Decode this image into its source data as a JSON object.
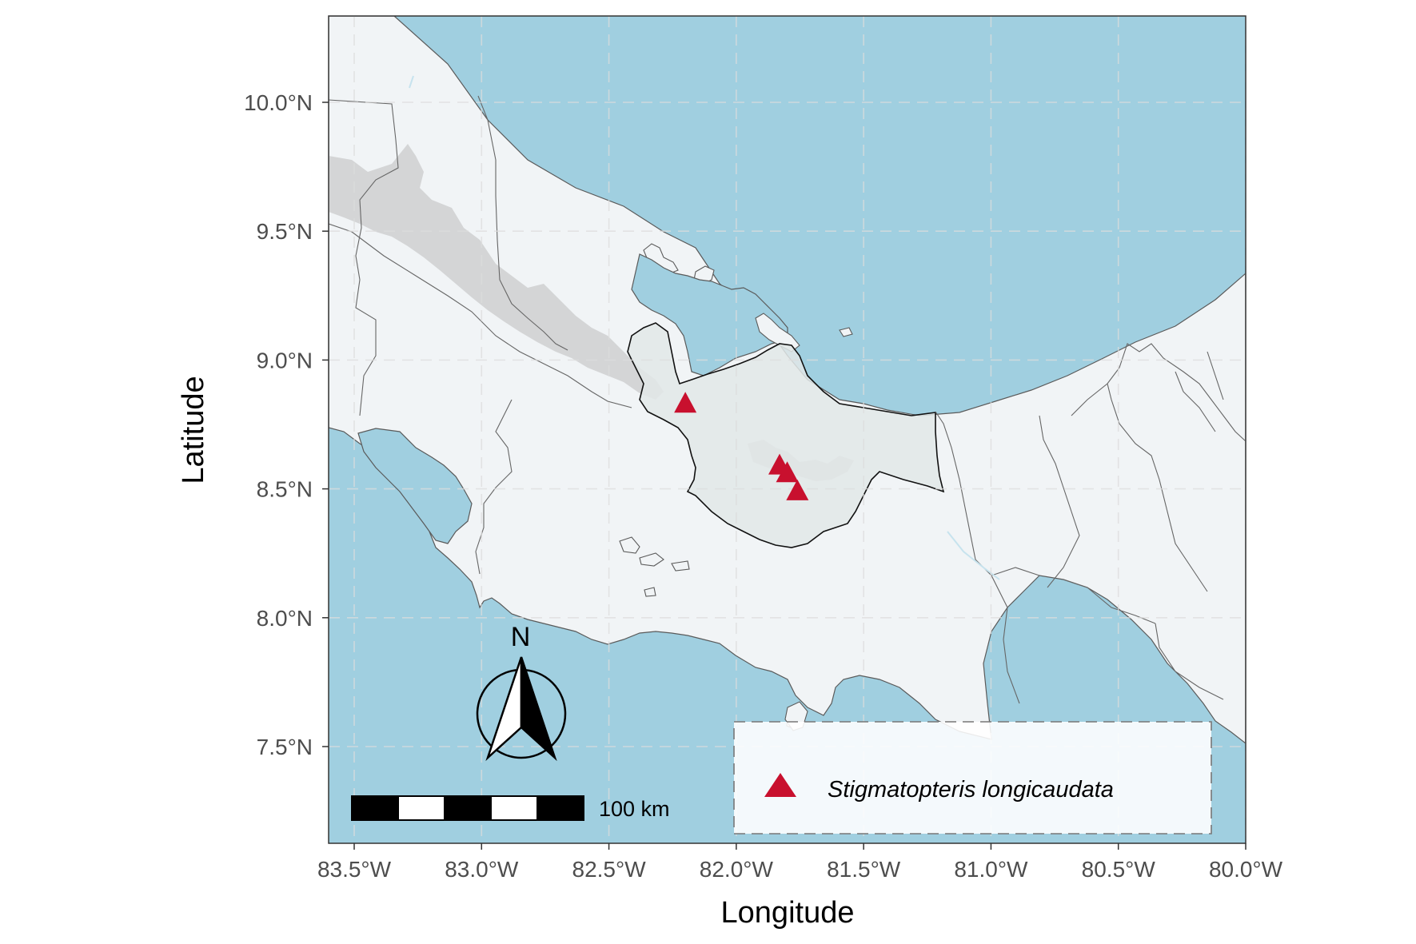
{
  "map": {
    "x_axis_title": "Longitude",
    "y_axis_title": "Latitude",
    "x_ticks": [
      "83.5°W",
      "83.0°W",
      "82.5°W",
      "82.0°W",
      "81.5°W",
      "81.0°W",
      "80.5°W",
      "80.0°W"
    ],
    "y_ticks": [
      "10.0°N",
      "9.5°N",
      "9.0°N",
      "8.5°N",
      "8.0°N",
      "7.5°N"
    ],
    "x_tick_values": [
      -83.5,
      -83.0,
      -82.5,
      -82.0,
      -81.5,
      -81.0,
      -80.5,
      -80.0
    ],
    "y_tick_values": [
      10.0,
      9.5,
      9.0,
      8.5,
      8.0,
      7.5
    ],
    "xlim": [
      -83.6,
      -80.0
    ],
    "ylim": [
      7.18,
      10.33
    ],
    "north_arrow_label": "N",
    "scale_bar_label": "100 km",
    "legend": {
      "label": "Stigmatopteris longicaudata",
      "placement": "bottom-right"
    },
    "occurrences": [
      {
        "lon": -82.2,
        "lat": 8.83
      },
      {
        "lon": -81.83,
        "lat": 8.59
      },
      {
        "lon": -81.8,
        "lat": 8.56
      },
      {
        "lon": -81.76,
        "lat": 8.49
      }
    ],
    "colors": {
      "sea": "#a0cfe0",
      "land": "#f1f4f6",
      "highlight_province": "#e2e7e7",
      "highlands": "#d0d1d3",
      "marker": "#c8102e",
      "grid": "#dddddd"
    },
    "grid": true
  }
}
